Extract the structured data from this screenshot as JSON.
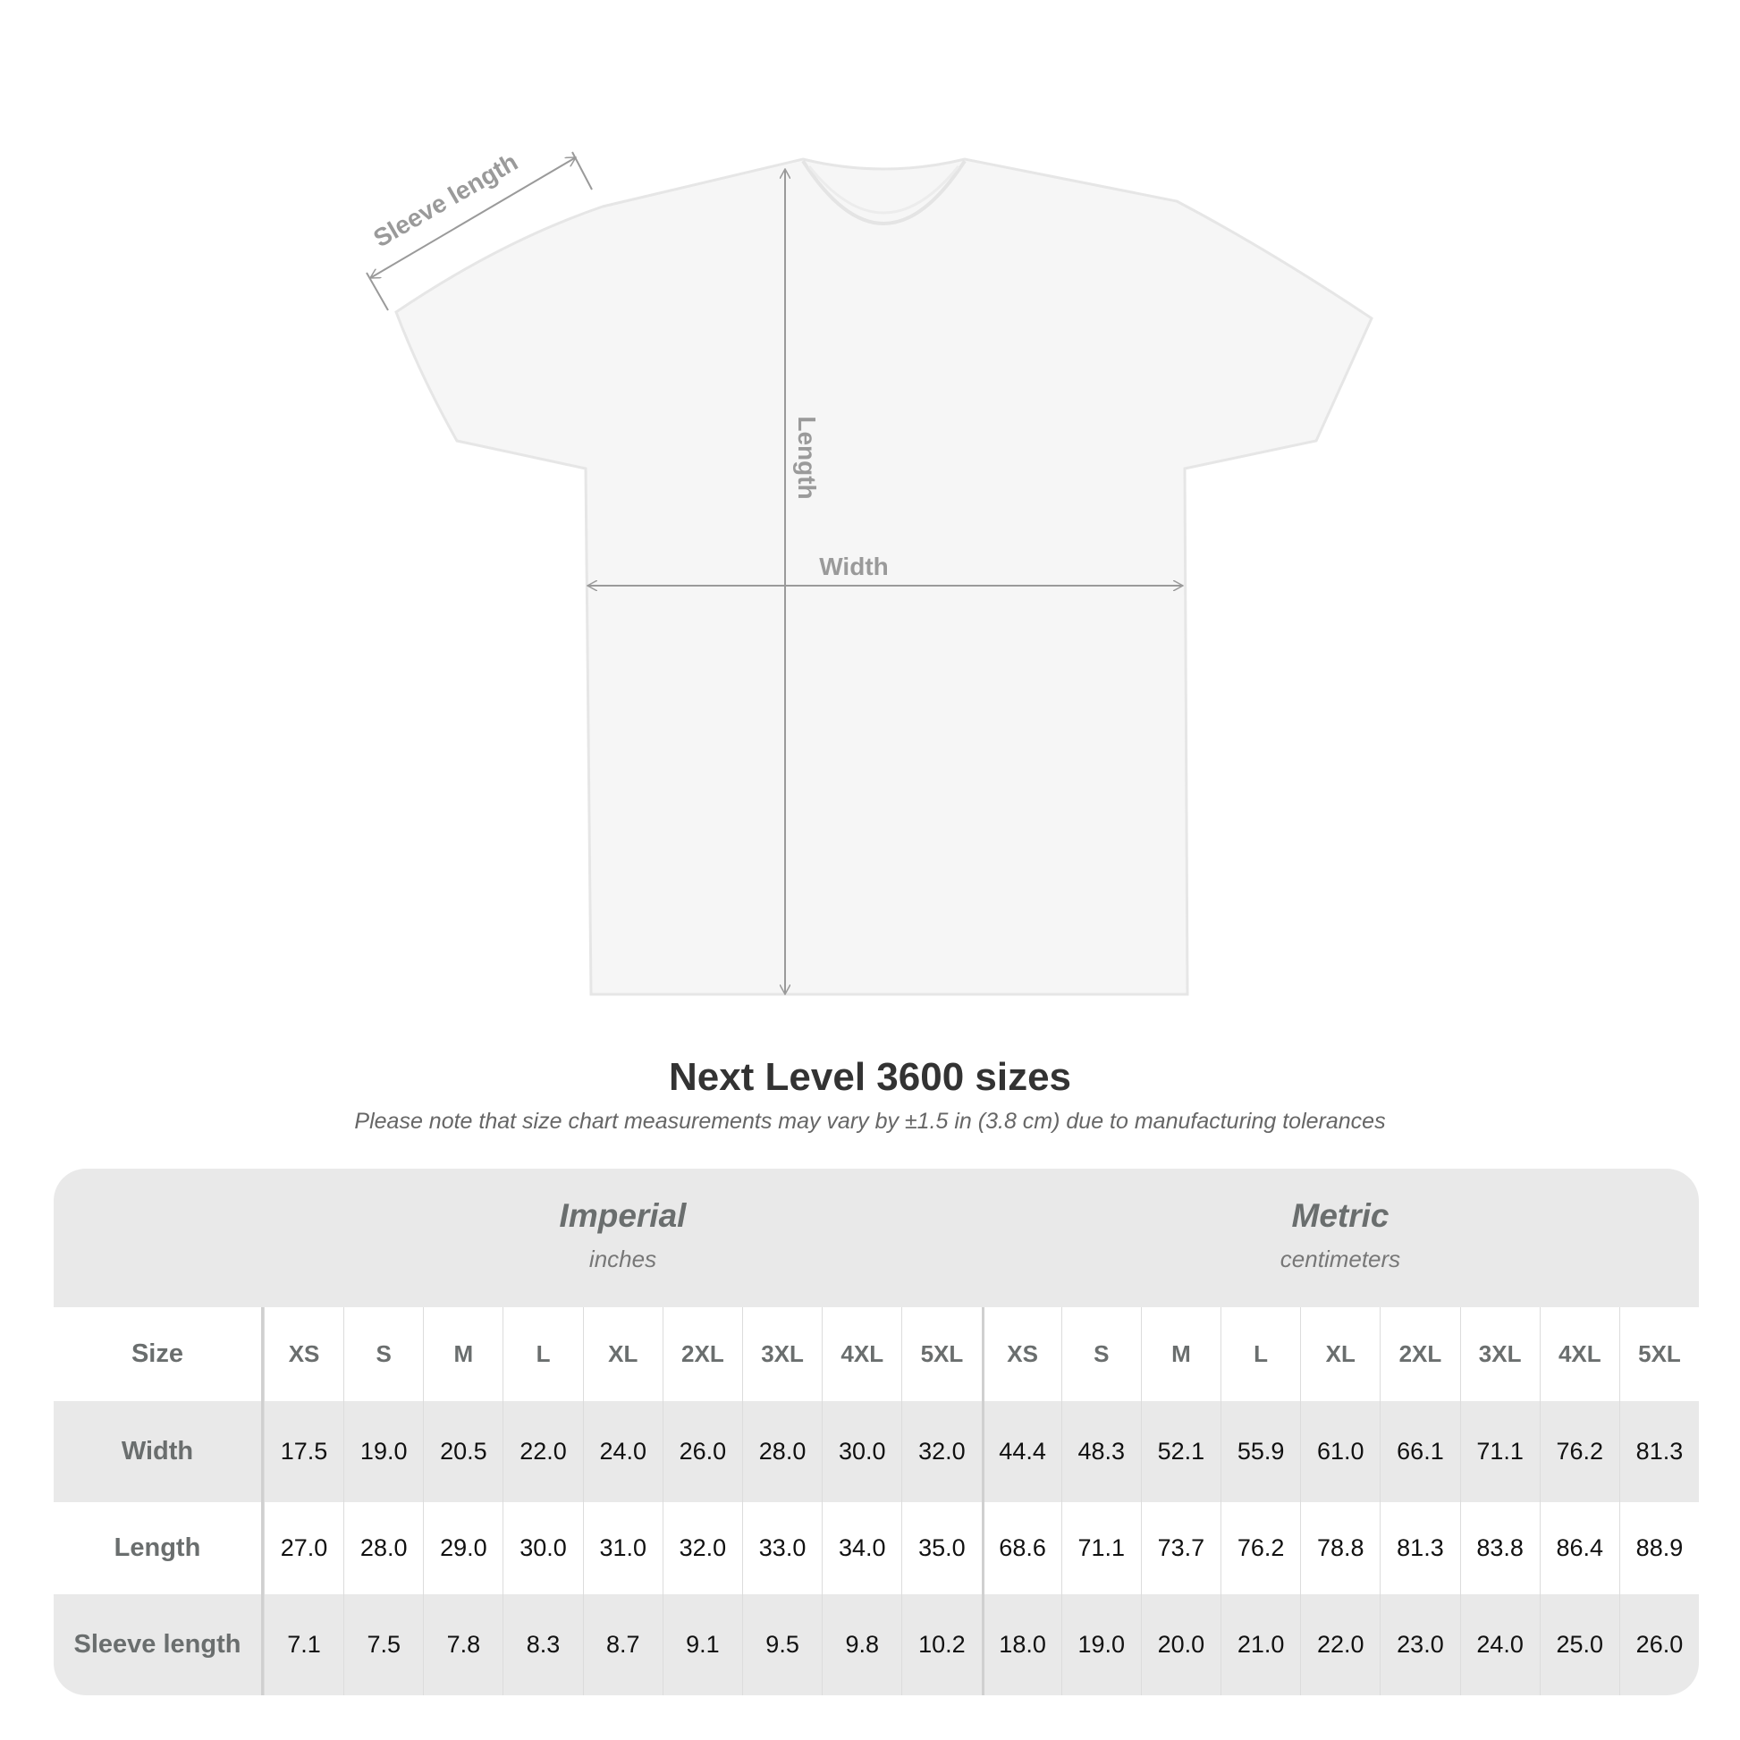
{
  "diagram": {
    "labels": {
      "sleeve": "Sleeve length",
      "length": "Length",
      "width": "Width"
    },
    "colors": {
      "shirt": "#f7f7f7",
      "arrow": "#9a9a9a"
    }
  },
  "title": "Next Level 3600 sizes",
  "subtitle": "Please note that size chart measurements may vary by ±1.5 in (3.8 cm) due to manufacturing tolerances",
  "table": {
    "imperial": {
      "name": "Imperial",
      "unit": "inches"
    },
    "metric": {
      "name": "Metric",
      "unit": "centimeters"
    },
    "size_label": "Size",
    "sizes": [
      "XS",
      "S",
      "M",
      "L",
      "XL",
      "2XL",
      "3XL",
      "4XL",
      "5XL"
    ],
    "rows": [
      {
        "label": "Width",
        "imperial": [
          "17.5",
          "19.0",
          "20.5",
          "22.0",
          "24.0",
          "26.0",
          "28.0",
          "30.0",
          "32.0"
        ],
        "metric": [
          "44.4",
          "48.3",
          "52.1",
          "55.9",
          "61.0",
          "66.1",
          "71.1",
          "76.2",
          "81.3"
        ]
      },
      {
        "label": "Length",
        "imperial": [
          "27.0",
          "28.0",
          "29.0",
          "30.0",
          "31.0",
          "32.0",
          "33.0",
          "34.0",
          "35.0"
        ],
        "metric": [
          "68.6",
          "71.1",
          "73.7",
          "76.2",
          "78.8",
          "81.3",
          "83.8",
          "86.4",
          "88.9"
        ]
      },
      {
        "label": "Sleeve length",
        "imperial": [
          "7.1",
          "7.5",
          "7.8",
          "8.3",
          "8.7",
          "9.1",
          "9.5",
          "9.8",
          "10.2"
        ],
        "metric": [
          "18.0",
          "19.0",
          "20.0",
          "21.0",
          "22.0",
          "23.0",
          "24.0",
          "25.0",
          "26.0"
        ]
      }
    ]
  }
}
